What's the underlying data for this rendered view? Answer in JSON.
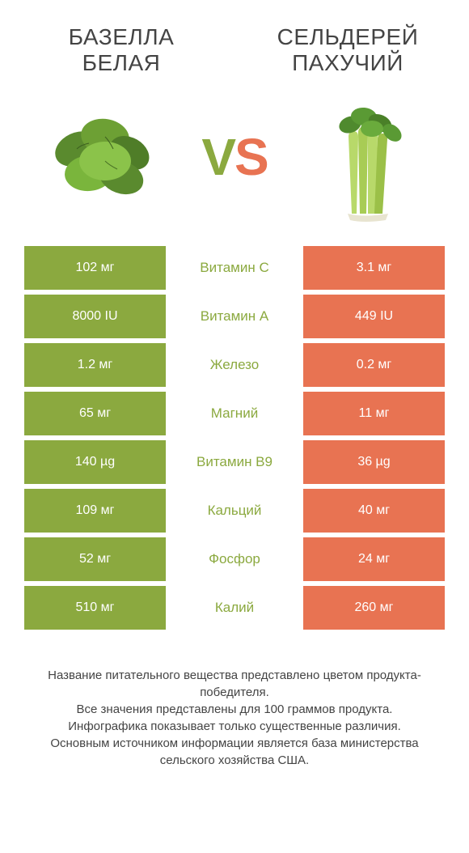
{
  "colors": {
    "left": "#8ba93f",
    "right": "#e87352",
    "text": "#444444",
    "background": "#ffffff"
  },
  "header": {
    "left_title": "БАЗЕЛЛА БЕЛАЯ",
    "right_title": "СЕЛЬДЕРЕЙ ПАХУЧИЙ",
    "vs_v": "V",
    "vs_s": "S"
  },
  "comparison": {
    "rows": [
      {
        "left": "102 мг",
        "label": "Витамин C",
        "right": "3.1 мг",
        "winner": "left"
      },
      {
        "left": "8000 IU",
        "label": "Витамин A",
        "right": "449 IU",
        "winner": "left"
      },
      {
        "left": "1.2 мг",
        "label": "Железо",
        "right": "0.2 мг",
        "winner": "left"
      },
      {
        "left": "65 мг",
        "label": "Магний",
        "right": "11 мг",
        "winner": "left"
      },
      {
        "left": "140 µg",
        "label": "Витамин B9",
        "right": "36 µg",
        "winner": "left"
      },
      {
        "left": "109 мг",
        "label": "Кальций",
        "right": "40 мг",
        "winner": "left"
      },
      {
        "left": "52 мг",
        "label": "Фосфор",
        "right": "24 мг",
        "winner": "left"
      },
      {
        "left": "510 мг",
        "label": "Калий",
        "right": "260 мг",
        "winner": "left"
      }
    ]
  },
  "footer": {
    "line1": "Название питательного вещества представлено цветом продукта-победителя.",
    "line2": "Все значения представлены для 100 граммов продукта.",
    "line3": "Инфографика показывает только существенные различия.",
    "line4": "Основным источником информации является база министерства сельского хозяйства США."
  }
}
